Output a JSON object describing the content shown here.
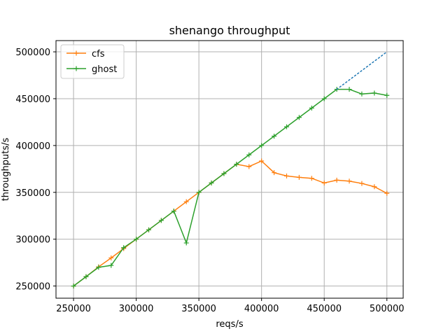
{
  "chart_data": {
    "type": "line",
    "title": "shenango throughput",
    "xlabel": "reqs/s",
    "ylabel": "throughputs/s",
    "xlim": [
      236000,
      513000
    ],
    "ylim": [
      237000,
      512000
    ],
    "x_ticks": [
      250000,
      300000,
      350000,
      400000,
      450000,
      500000
    ],
    "y_ticks": [
      250000,
      300000,
      350000,
      400000,
      450000,
      500000
    ],
    "x_tick_labels": [
      "250000",
      "300000",
      "350000",
      "400000",
      "450000",
      "500000"
    ],
    "y_tick_labels": [
      "250000",
      "300000",
      "350000",
      "400000",
      "450000",
      "500000"
    ],
    "grid": true,
    "legend_position": "top-left",
    "series": [
      {
        "name": "cfs",
        "color": "#ff7f0e",
        "marker": "plus",
        "x": [
          250000,
          260000,
          270000,
          280000,
          290000,
          300000,
          310000,
          320000,
          330000,
          340000,
          350000,
          360000,
          370000,
          380000,
          390000,
          400000,
          410000,
          420000,
          430000,
          440000,
          450000,
          460000,
          470000,
          480000,
          490000,
          500000
        ],
        "y": [
          250000,
          260000,
          270500,
          280000,
          290000,
          300000,
          310000,
          320000,
          330000,
          340000,
          350000,
          360000,
          370000,
          380000,
          377500,
          383500,
          371000,
          367500,
          366000,
          365000,
          360000,
          363000,
          362000,
          359500,
          356000,
          349000
        ]
      },
      {
        "name": "ghost",
        "color": "#2ca02c",
        "marker": "plus",
        "x": [
          250000,
          260000,
          270000,
          280000,
          290000,
          300000,
          310000,
          320000,
          330000,
          340000,
          350000,
          360000,
          370000,
          380000,
          390000,
          400000,
          410000,
          420000,
          430000,
          440000,
          450000,
          460000,
          470000,
          480000,
          490000,
          500000
        ],
        "y": [
          250000,
          260000,
          270000,
          272000,
          291000,
          300000,
          310000,
          320000,
          330000,
          296000,
          350000,
          360000,
          370000,
          380000,
          390000,
          400000,
          410000,
          420000,
          430000,
          440000,
          450000,
          460000,
          460000,
          455000,
          456000,
          453500
        ]
      },
      {
        "color": "#1f77b4",
        "style": "dotted",
        "marker": "none",
        "x": [
          460000,
          500000
        ],
        "y": [
          460000,
          500000
        ]
      }
    ]
  }
}
